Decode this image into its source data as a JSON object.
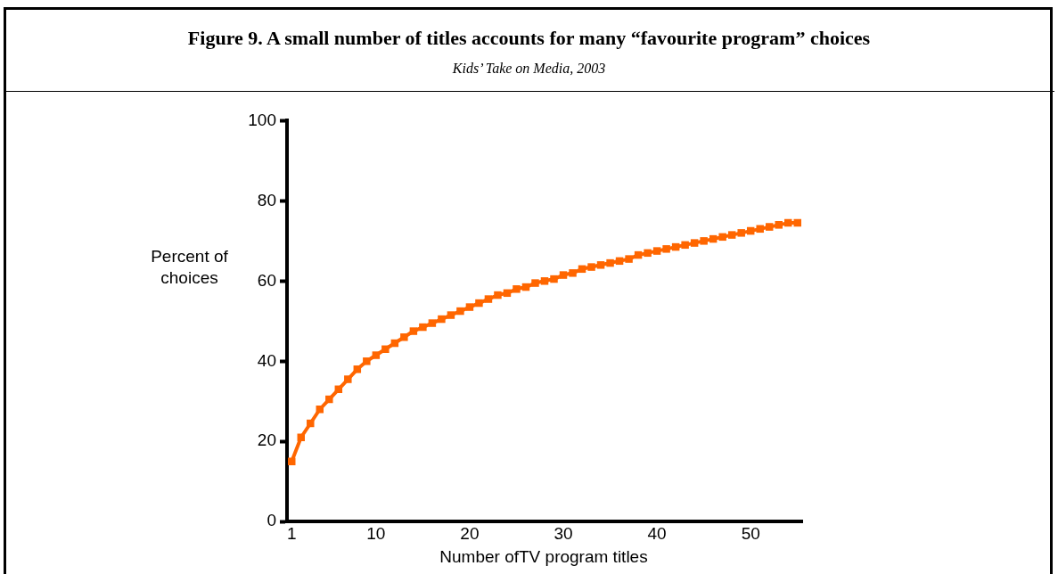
{
  "chart_data": {
    "type": "line",
    "title": "Figure 9. A small number of titles accounts for many “favourite program” choices",
    "subtitle": "Kids’ Take on Media, 2003",
    "xlabel": "Number ofTV program titles",
    "ylabel": "Percent of choices",
    "categories": [
      "1",
      null,
      null,
      null,
      null,
      null,
      null,
      null,
      null,
      "10",
      null,
      null,
      null,
      null,
      null,
      null,
      null,
      null,
      null,
      "20",
      null,
      null,
      null,
      null,
      null,
      null,
      null,
      null,
      null,
      "30",
      null,
      null,
      null,
      null,
      null,
      null,
      null,
      null,
      null,
      "40",
      null,
      null,
      null,
      null,
      null,
      null,
      null,
      null,
      null,
      "50",
      null,
      null,
      null,
      null,
      null
    ],
    "series": [
      {
        "color": "#ff6600",
        "values": [
          15,
          21,
          24.5,
          28,
          30.5,
          33,
          35.5,
          38,
          40,
          41.5,
          43,
          44.5,
          46,
          47.5,
          48.5,
          49.5,
          50.5,
          51.5,
          52.5,
          53.5,
          54.5,
          55.5,
          56.5,
          57,
          58,
          58.5,
          59.5,
          60,
          60.5,
          61.5,
          62,
          63,
          63.5,
          64,
          64.5,
          65,
          65.5,
          66.5,
          67,
          67.5,
          68,
          68.5,
          69,
          69.5,
          70,
          70.5,
          71,
          71.5,
          72,
          72.5,
          73,
          73.5,
          74,
          74.5,
          74.5
        ]
      }
    ],
    "ylim": [
      0,
      100
    ],
    "yticks": [
      0,
      20,
      40,
      60,
      80,
      100
    ],
    "grid": false,
    "legend": false,
    "marker": "square",
    "line_style": "solid"
  }
}
